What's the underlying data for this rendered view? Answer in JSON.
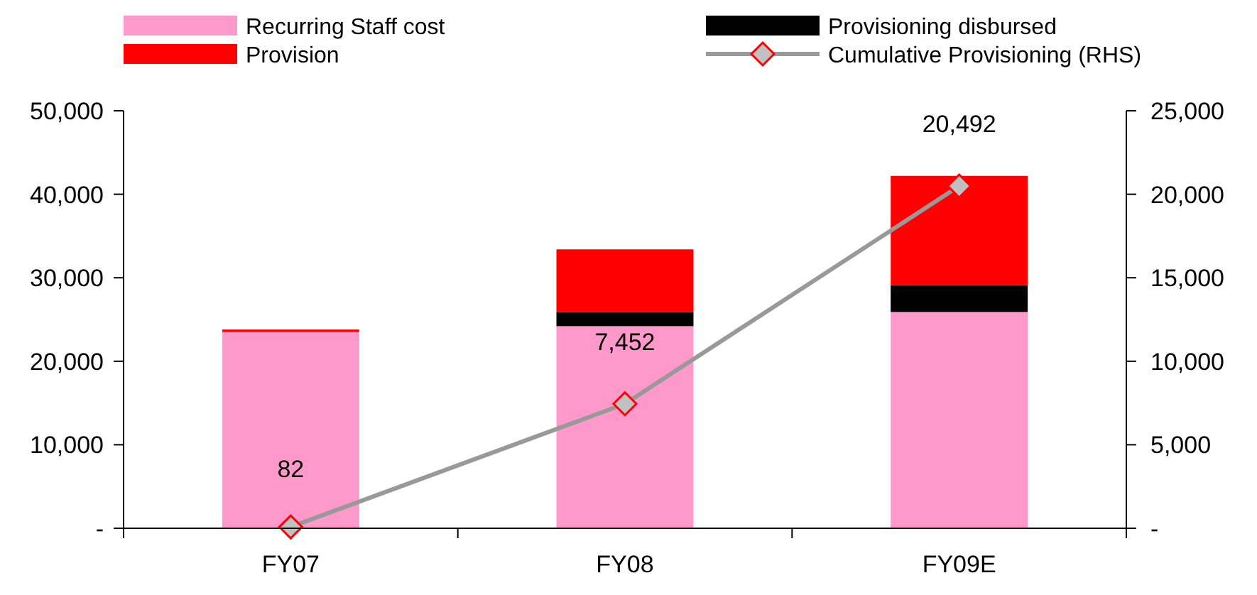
{
  "chart_data": {
    "type": "bar",
    "stacked": true,
    "categories": [
      "FY07",
      "FY08",
      "FY09E"
    ],
    "series": [
      {
        "name": "Recurring Staff cost",
        "color": "#ff99cc",
        "values": [
          23500,
          24200,
          25900
        ]
      },
      {
        "name": "Provisioning disbursed",
        "color": "#000000",
        "values": [
          0,
          1700,
          3200
        ]
      },
      {
        "name": "Provision",
        "color": "#ff0000",
        "values": [
          300,
          7500,
          13100
        ]
      },
      {
        "name": "Cumulative Provisioning (RHS)",
        "type": "line",
        "axis": "y2",
        "color": "#999999",
        "marker": "diamond",
        "values": [
          82,
          7452,
          20492
        ],
        "value_labels": [
          "82",
          "7,452",
          "20,492"
        ]
      }
    ],
    "ylim": [
      0,
      50000
    ],
    "yticks": [
      {
        "value": 0,
        "label": "-"
      },
      {
        "value": 10000,
        "label": "10,000"
      },
      {
        "value": 20000,
        "label": "20,000"
      },
      {
        "value": 30000,
        "label": "30,000"
      },
      {
        "value": 40000,
        "label": "40,000"
      },
      {
        "value": 50000,
        "label": "50,000"
      }
    ],
    "y2lim": [
      0,
      25000
    ],
    "y2ticks": [
      {
        "value": 0,
        "label": "-"
      },
      {
        "value": 5000,
        "label": "5,000"
      },
      {
        "value": 10000,
        "label": "10,000"
      },
      {
        "value": 15000,
        "label": "15,000"
      },
      {
        "value": 20000,
        "label": "20,000"
      },
      {
        "value": 25000,
        "label": "25,000"
      }
    ],
    "grid": false,
    "legend": "top"
  }
}
